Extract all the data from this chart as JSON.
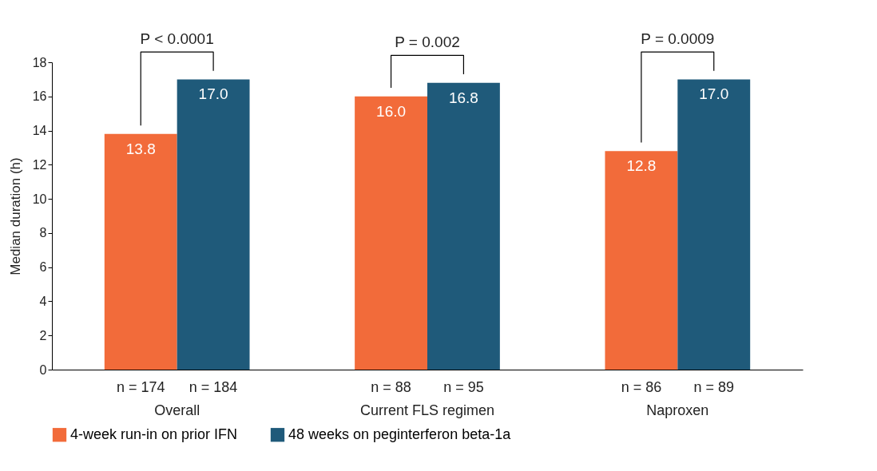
{
  "chart_data": {
    "type": "bar",
    "ylabel": "Median duration (h)",
    "categories": [
      "Overall",
      "Current FLS regimen",
      "Naproxen"
    ],
    "series": [
      {
        "name": "4-week run-in on prior IFN",
        "color": "#f26b3a",
        "values": [
          13.8,
          16.0,
          12.8
        ],
        "value_labels": [
          "13.8",
          "16.0",
          "12.8"
        ]
      },
      {
        "name": "48 weeks on peginterferon beta-1a",
        "color": "#1f5a7a",
        "values": [
          17.0,
          16.8,
          17.0
        ],
        "value_labels": [
          "17.0",
          "16.8",
          "17.0"
        ]
      }
    ],
    "ylim": [
      0,
      18
    ],
    "yticks": [
      0,
      2,
      4,
      6,
      8,
      10,
      12,
      14,
      16,
      18
    ],
    "grid": false,
    "legend": "bottom",
    "annotations": [
      "P < 0.0001",
      "P = 0.002",
      "P = 0.0009",
      "n = 174",
      "n = 184",
      "n = 88",
      "n = 95",
      "n = 86",
      "n = 89"
    ]
  }
}
